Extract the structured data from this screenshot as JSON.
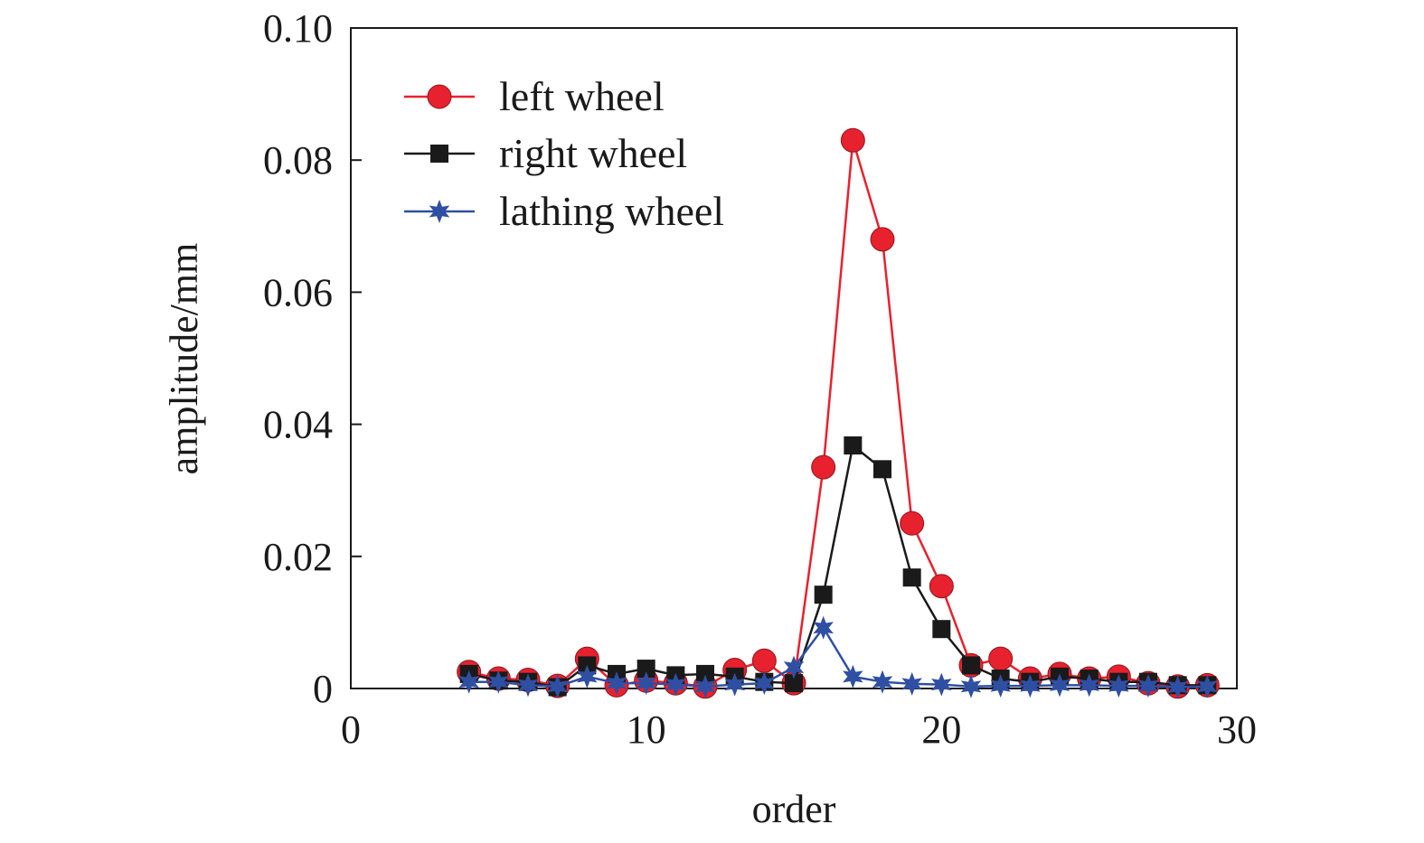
{
  "chart_data": {
    "type": "line",
    "title": "",
    "xlabel": "order",
    "ylabel": "amplitude/mm",
    "xlim": [
      0,
      30
    ],
    "ylim": [
      0,
      0.1
    ],
    "xticks": [
      0,
      10,
      20,
      30
    ],
    "xtick_labels": [
      "0",
      "10",
      "20",
      "30"
    ],
    "yticks": [
      0,
      0.02,
      0.04,
      0.06,
      0.08,
      0.1
    ],
    "ytick_labels": [
      "0",
      "0.02",
      "0.04",
      "0.06",
      "0.08",
      "0.10"
    ],
    "grid": false,
    "legend_position": "top-left",
    "x": [
      4,
      5,
      6,
      7,
      8,
      9,
      10,
      11,
      12,
      13,
      14,
      15,
      16,
      17,
      18,
      19,
      20,
      21,
      22,
      23,
      24,
      25,
      26,
      27,
      28,
      29
    ],
    "series": [
      {
        "name": "left wheel",
        "marker": "circle",
        "color": "#e8212e",
        "values": [
          0.0025,
          0.0015,
          0.0013,
          0.0004,
          0.0045,
          0.0005,
          0.0012,
          0.0008,
          0.0003,
          0.0028,
          0.0042,
          0.0008,
          0.0335,
          0.083,
          0.068,
          0.025,
          0.0155,
          0.0035,
          0.0045,
          0.0015,
          0.0022,
          0.0015,
          0.0018,
          0.0008,
          0.0003,
          0.0005
        ]
      },
      {
        "name": "right wheel",
        "marker": "square",
        "color": "#1a1a1a",
        "values": [
          0.0022,
          0.0012,
          0.001,
          0.0002,
          0.0035,
          0.0022,
          0.003,
          0.002,
          0.0022,
          0.0018,
          0.001,
          0.0008,
          0.0142,
          0.0368,
          0.0332,
          0.0168,
          0.009,
          0.0035,
          0.0015,
          0.001,
          0.0018,
          0.0015,
          0.001,
          0.001,
          0.0005,
          0.0005
        ]
      },
      {
        "name": "lathing wheel",
        "marker": "star",
        "color": "#2f4fa3",
        "values": [
          0.001,
          0.001,
          0.0005,
          0.0003,
          0.0018,
          0.0008,
          0.0008,
          0.0006,
          0.0003,
          0.0006,
          0.0008,
          0.0032,
          0.0092,
          0.0018,
          0.001,
          0.0007,
          0.0006,
          0.0003,
          0.0004,
          0.0004,
          0.0005,
          0.0005,
          0.0004,
          0.0004,
          0.0002,
          0.0003
        ]
      }
    ]
  }
}
